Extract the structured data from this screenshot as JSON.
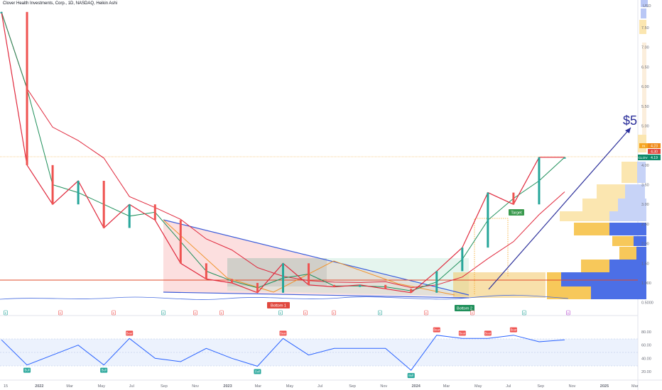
{
  "header": {
    "title": "Clover Health Investments, Corp., 1D, NASDAQ, Heikin Ashi"
  },
  "price_axis": {
    "currency": "USD",
    "ticks": [
      "7.50",
      "7.00",
      "6.50",
      "6.00",
      "5.50",
      "5.00",
      "4.50",
      "4.00",
      "3.50",
      "3.00",
      "2.50",
      "2.00",
      "1.50",
      "1.000",
      "0.5000"
    ]
  },
  "rsi_axis": {
    "ticks": [
      "80.00",
      "60.00",
      "40.00",
      "20.00"
    ]
  },
  "time_axis": {
    "ticks": [
      "15",
      "2022",
      "Mar",
      "May",
      "Jul",
      "Sep",
      "Nov",
      "2023",
      "Mar",
      "May",
      "Jul",
      "Sep",
      "Nov",
      "2024",
      "Mar",
      "May",
      "Jul",
      "Sep",
      "Nov",
      "2025",
      "Mar"
    ]
  },
  "price_badges": {
    "bar": "4.23",
    "mid": "4.30",
    "ticker": "CLOV",
    "last": "4.19"
  },
  "annotations": {
    "target_price": "$5",
    "target_label": "Target",
    "bottom1": "Bottom 1",
    "bottom2": "Bottom 2"
  },
  "markers": {
    "rsi_bull": "Bull",
    "rsi_bear": "Bear",
    "event_e": "E",
    "event_d": "D"
  },
  "colors": {
    "up": "#26a69a",
    "down": "#ef5350",
    "trend": "#2a2e9a",
    "ma_fast": "#1e8f5a",
    "ma_slow": "#e0283c",
    "rsi": "#2962ff"
  },
  "chart_data": {
    "type": "line",
    "x": [
      "2021-12",
      "2022-01",
      "2022-03",
      "2022-05",
      "2022-07",
      "2022-08",
      "2022-09",
      "2022-11",
      "2023-01",
      "2023-03",
      "2023-05",
      "2023-07",
      "2023-09",
      "2023-11",
      "2024-01",
      "2024-03",
      "2024-05",
      "2024-06",
      "2024-07",
      "2024-08",
      "2024-09",
      "2024-10",
      "2024-11"
    ],
    "series": [
      {
        "values": [
          7.9,
          4.0,
          3.0,
          3.6,
          2.4,
          3.0,
          2.6,
          1.5,
          1.1,
          1.0,
          0.75,
          1.5,
          0.95,
          0.9,
          0.95,
          0.85,
          0.75,
          1.3,
          1.9,
          3.3,
          3.0,
          4.2,
          4.2
        ]
      }
    ],
    "rsi_values": [
      68,
      30,
      45,
      60,
      30,
      70,
      40,
      35,
      55,
      40,
      28,
      70,
      45,
      55,
      55,
      55,
      22,
      75,
      70,
      70,
      75,
      65,
      68
    ],
    "ylim": [
      0.5,
      7.9
    ],
    "rsi_ylim": [
      15,
      85
    ]
  }
}
